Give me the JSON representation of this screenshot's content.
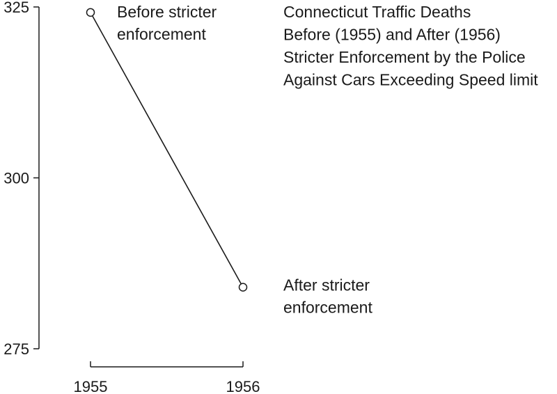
{
  "chart_data": {
    "type": "line",
    "title_lines": [
      "Connecticut Traffic Deaths",
      "Before (1955) and After (1956)",
      "Stricter Enforcement by the Police",
      "Against Cars Exceeding Speed limit"
    ],
    "xlabel": "",
    "ylabel": "",
    "categories": [
      "1955",
      "1956"
    ],
    "series": [
      {
        "values": [
          324.2,
          284.0
        ]
      }
    ],
    "ylim": [
      275,
      325
    ],
    "yticks": [
      325,
      300,
      275
    ],
    "grid": false,
    "annotations": [
      {
        "point": 0,
        "lines": [
          "Before stricter",
          "enforcement"
        ]
      },
      {
        "point": 1,
        "lines": [
          "After stricter",
          "enforcement"
        ]
      }
    ],
    "colors": {
      "line": "#1a1a1a",
      "text": "#1a1a1a"
    }
  }
}
